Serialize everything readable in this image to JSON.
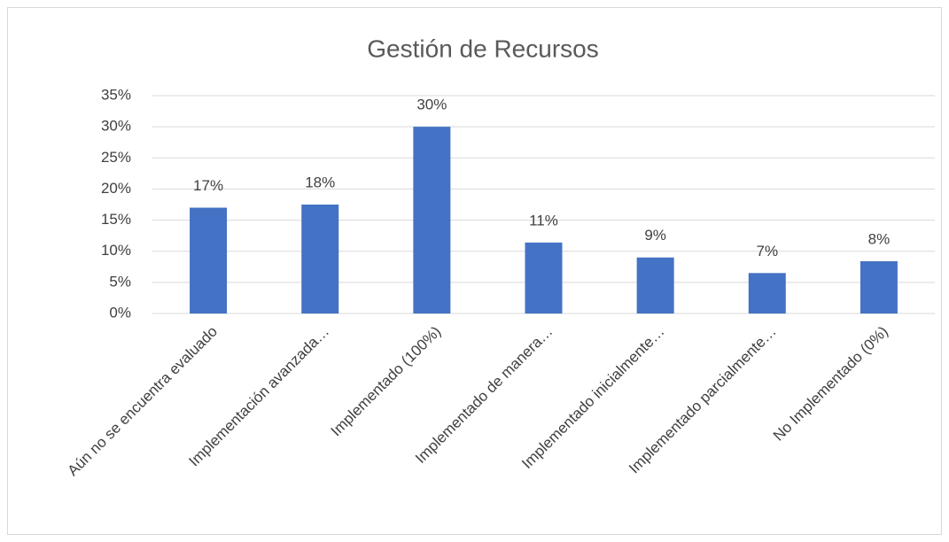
{
  "chart_data": {
    "type": "bar",
    "title": "Gestión de Recursos",
    "categories": [
      "Aún no se encuentra evaluado",
      "Implementación avanzada…",
      "Implementado (100%)",
      "Implementado de manera…",
      "Implementado inicialmente…",
      "Implementado parcialmente…",
      "No Implementado (0%)"
    ],
    "values": [
      17,
      17.5,
      30,
      11.4,
      9,
      6.5,
      8.4
    ],
    "value_labels": [
      "17%",
      "18%",
      "30%",
      "11%",
      "9%",
      "7%",
      "8%"
    ],
    "color": "#4472c4",
    "ylim": [
      0,
      35
    ],
    "yticks": [
      {
        "value": 0,
        "label": "0%"
      },
      {
        "value": 5,
        "label": "5%"
      },
      {
        "value": 10,
        "label": "10%"
      },
      {
        "value": 15,
        "label": "15%"
      },
      {
        "value": 20,
        "label": "20%"
      },
      {
        "value": 25,
        "label": "25%"
      },
      {
        "value": 30,
        "label": "30%"
      },
      {
        "value": 35,
        "label": "35%"
      }
    ],
    "grid": true
  }
}
